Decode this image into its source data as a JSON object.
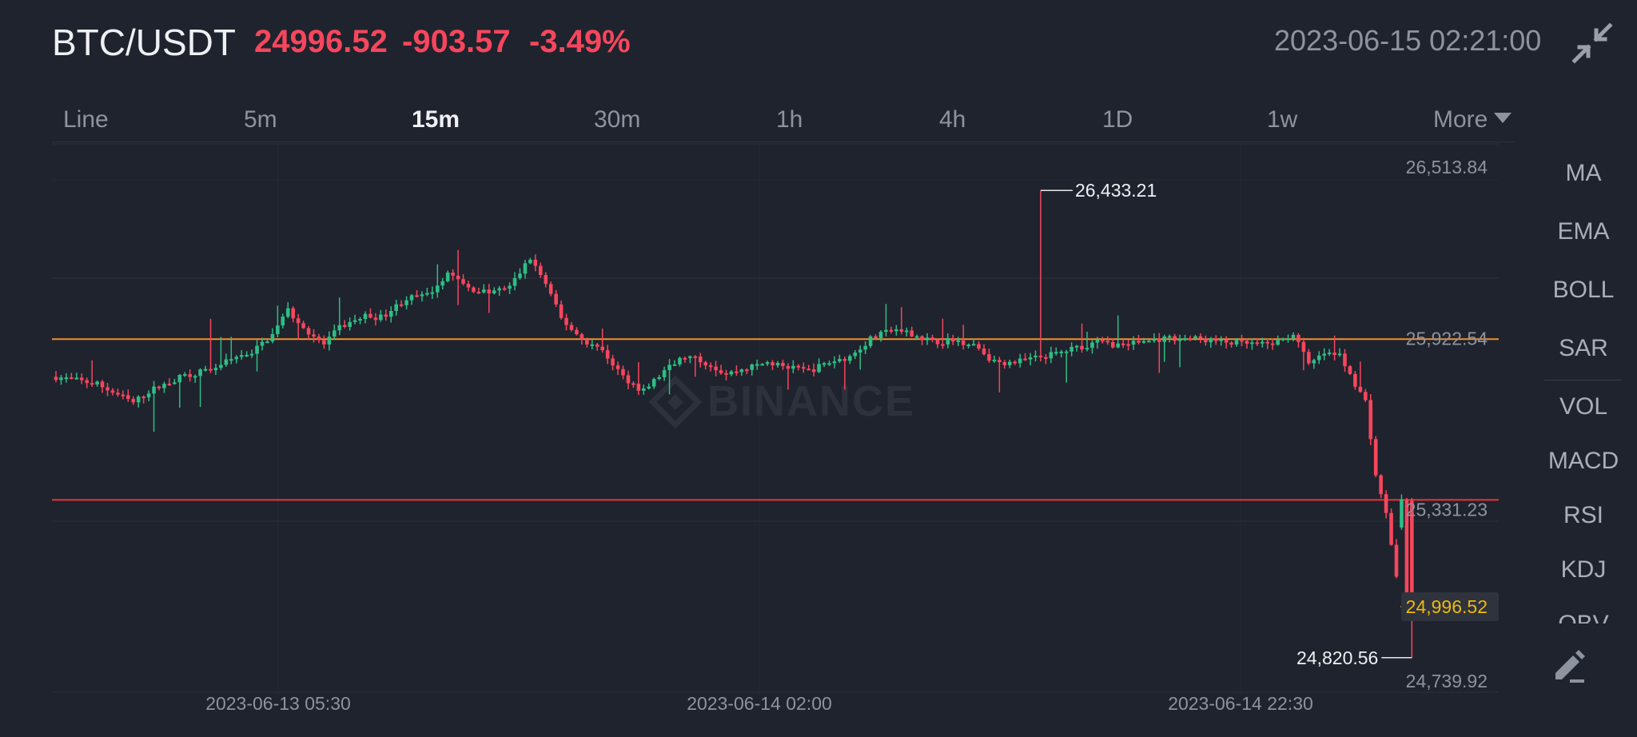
{
  "header": {
    "pair": "BTC/USDT",
    "price": "24996.52",
    "change": "-903.57",
    "change_pct": "-3.49%",
    "datetime": "2023-06-15 02:21:00",
    "collapse_icon": "collapse-arrows-icon"
  },
  "tabs": [
    {
      "label": "Line",
      "active": false
    },
    {
      "label": "5m",
      "active": false
    },
    {
      "label": "15m",
      "active": true
    },
    {
      "label": "30m",
      "active": false
    },
    {
      "label": "1h",
      "active": false
    },
    {
      "label": "4h",
      "active": false
    },
    {
      "label": "1D",
      "active": false
    },
    {
      "label": "1w",
      "active": false
    },
    {
      "label": "More",
      "active": false
    }
  ],
  "indicators": [
    "MA",
    "EMA",
    "BOLL",
    "SAR",
    "VOL",
    "MACD",
    "RSI",
    "KDJ",
    "OBV"
  ],
  "draw_icon": "pencil-icon",
  "colors": {
    "up": "#2ebd85",
    "down": "#f6465d",
    "resistance": "#f0902f",
    "support": "#e8343a",
    "last_price": "#f0b90b"
  },
  "watermark": "BINANCE",
  "chart_data": {
    "type": "candlestick",
    "interval": "15m",
    "y_ticks": [
      "26,513.84",
      "25,922.54",
      "25,331.23",
      "24,739.92"
    ],
    "y_tick_values": [
      26513.84,
      25922.54,
      25331.23,
      24739.92
    ],
    "x_ticks": [
      "2023-06-13 05:30",
      "2023-06-14 02:00",
      "2023-06-14 22:30"
    ],
    "high_label": "26,433.21",
    "high_value": 26433.21,
    "low_label": "24,820.56",
    "low_value": 24820.56,
    "last_price_label": "24,996.52",
    "last_price": 24996.52,
    "horizontal_lines": [
      {
        "value": 25920,
        "color": "#f0902f"
      },
      {
        "value": 25365,
        "color": "#e8343a"
      }
    ],
    "path_anchors": [
      [
        0,
        25790
      ],
      [
        8,
        25765
      ],
      [
        15,
        25700
      ],
      [
        18,
        25740
      ],
      [
        25,
        25795
      ],
      [
        30,
        25815
      ],
      [
        35,
        25860
      ],
      [
        38,
        25875
      ],
      [
        42,
        25935
      ],
      [
        45,
        26020
      ],
      [
        48,
        25960
      ],
      [
        52,
        25900
      ],
      [
        55,
        25960
      ],
      [
        60,
        26000
      ],
      [
        63,
        25995
      ],
      [
        68,
        26060
      ],
      [
        72,
        26070
      ],
      [
        76,
        26150
      ],
      [
        80,
        26095
      ],
      [
        84,
        26080
      ],
      [
        88,
        26100
      ],
      [
        92,
        26200
      ],
      [
        95,
        26110
      ],
      [
        98,
        25990
      ],
      [
        102,
        25920
      ],
      [
        106,
        25880
      ],
      [
        110,
        25790
      ],
      [
        114,
        25740
      ],
      [
        118,
        25810
      ],
      [
        122,
        25860
      ],
      [
        126,
        25840
      ],
      [
        130,
        25800
      ],
      [
        134,
        25820
      ],
      [
        138,
        25840
      ],
      [
        142,
        25820
      ],
      [
        146,
        25810
      ],
      [
        150,
        25840
      ],
      [
        154,
        25860
      ],
      [
        158,
        25920
      ],
      [
        162,
        25950
      ],
      [
        166,
        25940
      ],
      [
        170,
        25910
      ],
      [
        174,
        25915
      ],
      [
        178,
        25905
      ],
      [
        182,
        25840
      ],
      [
        186,
        25840
      ],
      [
        190,
        25855
      ],
      [
        194,
        25870
      ],
      [
        198,
        25890
      ],
      [
        202,
        25910
      ],
      [
        206,
        25900
      ],
      [
        210,
        25910
      ],
      [
        214,
        25920
      ],
      [
        218,
        25925
      ],
      [
        222,
        25920
      ],
      [
        226,
        25910
      ],
      [
        230,
        25905
      ],
      [
        234,
        25900
      ],
      [
        237,
        25910
      ],
      [
        240,
        25940
      ],
      [
        243,
        25830
      ],
      [
        246,
        25870
      ],
      [
        249,
        25860
      ],
      [
        251,
        25800
      ],
      [
        254,
        25700
      ],
      [
        256,
        25450
      ],
      [
        258,
        25320
      ],
      [
        260,
        25100
      ],
      [
        262,
        25050
      ],
      [
        263,
        24996.52
      ]
    ]
  }
}
